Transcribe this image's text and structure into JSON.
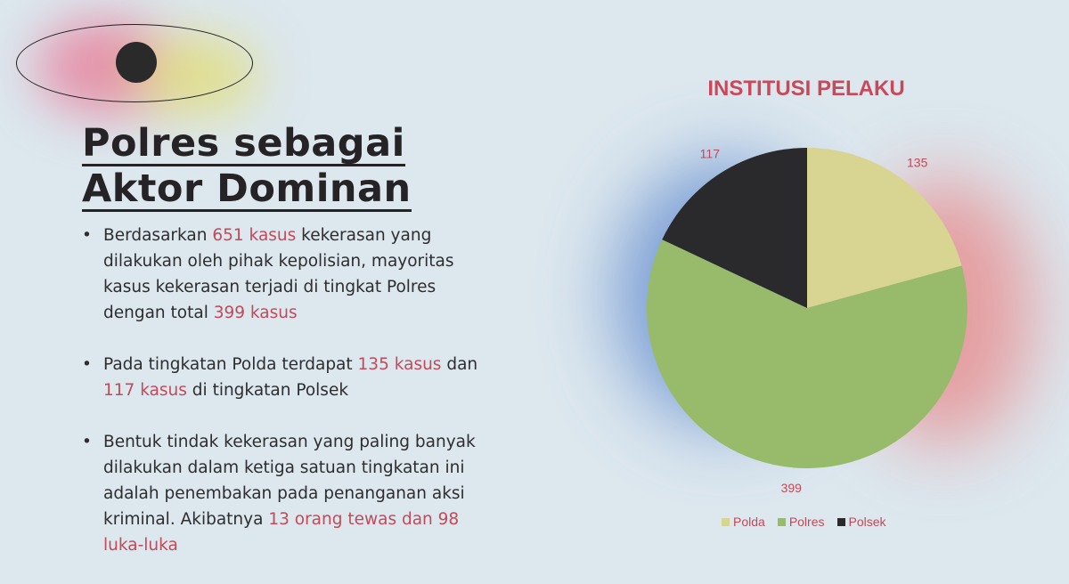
{
  "headline": {
    "line1": "Polres sebagai",
    "line2": "Aktor Dominan"
  },
  "bullets": [
    {
      "parts": [
        {
          "text": "Berdasarkan ",
          "hl": false
        },
        {
          "text": "651 kasus",
          "hl": true
        },
        {
          "text": " kekerasan yang dilakukan oleh pihak kepolisian, mayoritas kasus kekerasan terjadi di tingkat Polres dengan total ",
          "hl": false
        },
        {
          "text": "399 kasus",
          "hl": true
        }
      ]
    },
    {
      "parts": [
        {
          "text": "Pada tingkatan Polda terdapat ",
          "hl": false
        },
        {
          "text": "135 kasus",
          "hl": true
        },
        {
          "text": " dan ",
          "hl": false
        },
        {
          "text": "117 kasus",
          "hl": true
        },
        {
          "text": " di tingkatan Polsek",
          "hl": false
        }
      ]
    },
    {
      "parts": [
        {
          "text": "Bentuk tindak kekerasan yang paling banyak dilakukan dalam ketiga satuan tingkatan ini adalah penembakan pada penanganan aksi kriminal. Akibatnya ",
          "hl": false
        },
        {
          "text": "13 orang tewas dan 98 luka-luka",
          "hl": true
        }
      ]
    }
  ],
  "colors": {
    "highlight": "#c24a59",
    "polda": "#d8d593",
    "polres": "#97bb6b",
    "polsek": "#2a292b"
  },
  "chart_data": {
    "type": "pie",
    "title": "INSTITUSI PELAKU",
    "categories": [
      "Polda",
      "Polres",
      "Polsek"
    ],
    "values": [
      135,
      399,
      117
    ],
    "legend_position": "bottom"
  }
}
